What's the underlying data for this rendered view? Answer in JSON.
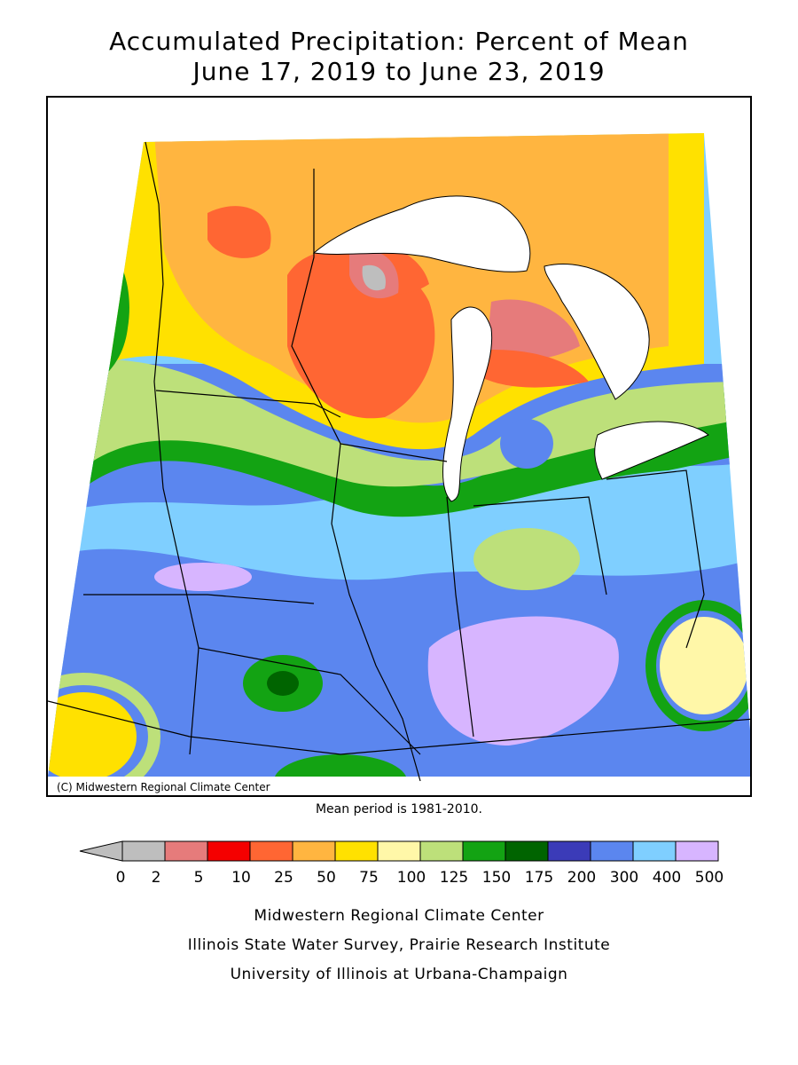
{
  "title": {
    "line1": "Accumulated Precipitation: Percent of Mean",
    "line2": "June 17, 2019 to June 23, 2019"
  },
  "map": {
    "copyright": "(C) Midwestern Regional Climate Center",
    "regions": [
      {
        "name": "upper-midwest-dry",
        "category": "25-50",
        "color": "#ffb540"
      },
      {
        "name": "wisconsin-core",
        "category": "10-25",
        "color": "#ff6633"
      },
      {
        "name": "lower-band-wet",
        "category": "200-300",
        "color": "#5b86ef"
      },
      {
        "name": "central-very-wet",
        "category": "300-400",
        "color": "#7fcfff"
      },
      {
        "name": "southern-extreme",
        "category": "400-500",
        "color": "#d7b5ff"
      }
    ]
  },
  "mean_note": "Mean period is 1981-2010.",
  "legend": {
    "colors": [
      "#bebebe",
      "#e67b7b",
      "#f50000",
      "#ff6633",
      "#ffb540",
      "#ffe100",
      "#fff7a8",
      "#bde07a",
      "#13a313",
      "#006400",
      "#3b3bb8",
      "#5b86ef",
      "#7fcfff",
      "#d7b5ff"
    ],
    "labels": [
      "0",
      "2",
      "5",
      "10",
      "25",
      "50",
      "75",
      "100",
      "125",
      "150",
      "175",
      "200",
      "300",
      "400",
      "500"
    ]
  },
  "footer": {
    "line1": "Midwestern Regional Climate Center",
    "line2": "Illinois State Water Survey, Prairie Research Institute",
    "line3": "University of Illinois at Urbana-Champaign"
  }
}
